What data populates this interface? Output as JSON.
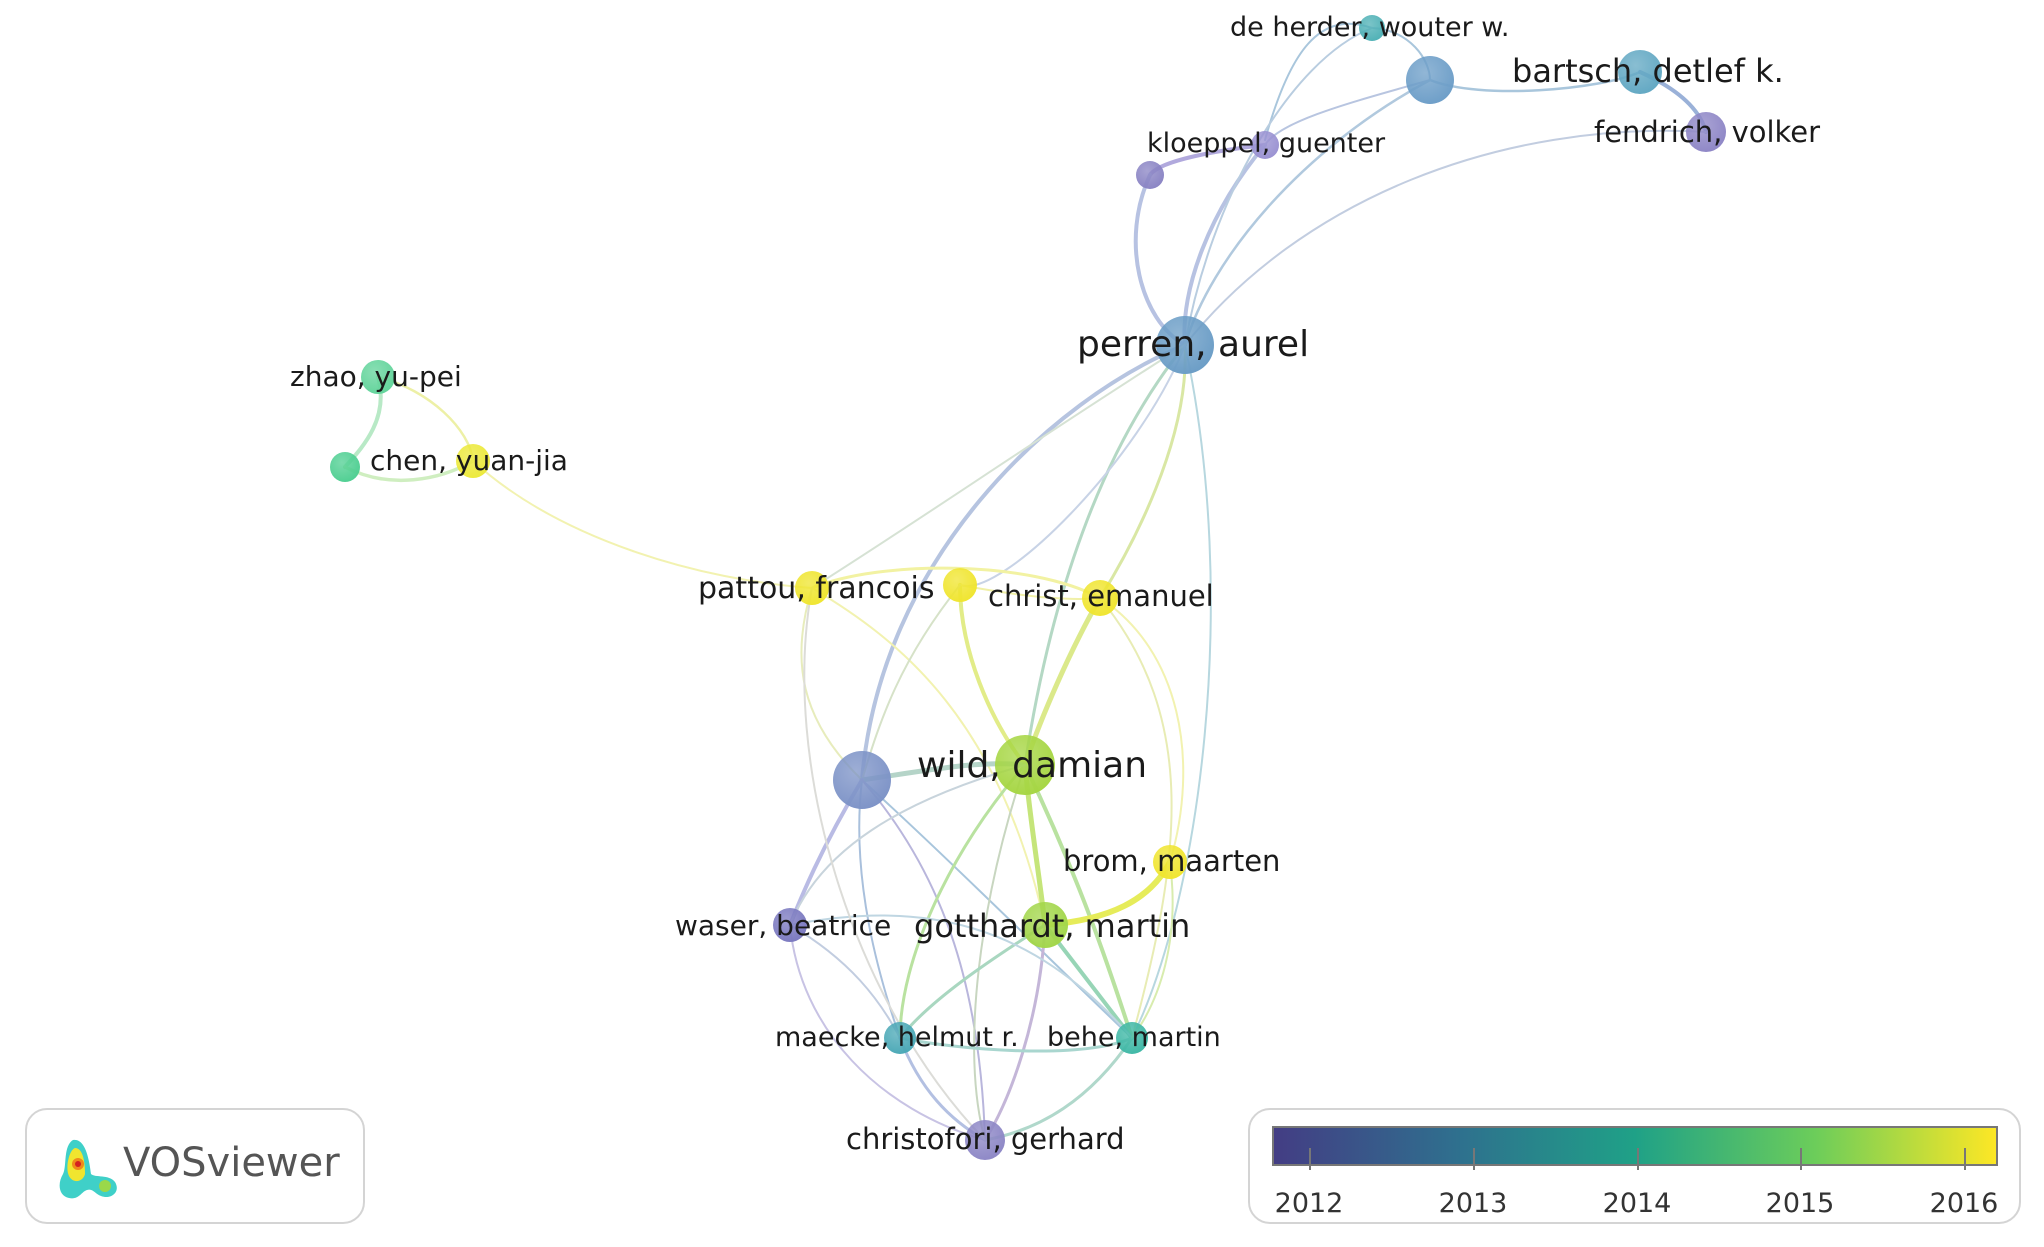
{
  "nodes": [
    {
      "id": "de-herder",
      "label": "de herder, wouter w.",
      "color": "#4fb1b6"
    },
    {
      "id": "unlabeled-top",
      "label": "",
      "color": "#6d9ec8"
    },
    {
      "id": "bartsch",
      "label": "bartsch, detlef k.",
      "color": "#62a8c3"
    },
    {
      "id": "fendrich",
      "label": "fendrich, volker",
      "color": "#8e86c6"
    },
    {
      "id": "kloeppel",
      "label": "kloeppel, guenter",
      "color": "#9a92d2"
    },
    {
      "id": "small-purple",
      "label": "",
      "color": "#8a84c4"
    },
    {
      "id": "perren",
      "label": "perren, aurel",
      "color": "#6b9dc6"
    },
    {
      "id": "zhao",
      "label": "zhao, yu-pei",
      "color": "#62d49b"
    },
    {
      "id": "small-green",
      "label": "",
      "color": "#4fcf92"
    },
    {
      "id": "chen",
      "label": "chen, yuan-jia",
      "color": "#ece93a"
    },
    {
      "id": "pattou",
      "label": "pattou, francois",
      "color": "#efe52f"
    },
    {
      "id": "yellow-unlabeled",
      "label": "",
      "color": "#f0e52f"
    },
    {
      "id": "christ",
      "label": "christ, emanuel",
      "color": "#f0e52f"
    },
    {
      "id": "blue-large",
      "label": "",
      "color": "#7d93c7"
    },
    {
      "id": "wild",
      "label": "wild, damian",
      "color": "#a6d643"
    },
    {
      "id": "brom",
      "label": "brom, maarten",
      "color": "#f0e52f"
    },
    {
      "id": "waser",
      "label": "waser, beatrice",
      "color": "#7b79c0"
    },
    {
      "id": "gotthardt",
      "label": "gotthardt, martin",
      "color": "#a2d64a"
    },
    {
      "id": "maecke",
      "label": "maecke, helmut r.",
      "color": "#4aa8b6"
    },
    {
      "id": "behe",
      "label": "behe, martin",
      "color": "#3fb8a6"
    },
    {
      "id": "christofori",
      "label": "christofori, gerhard",
      "color": "#8d87c6"
    }
  ],
  "logo": {
    "text": "VOSviewer"
  },
  "legend": {
    "ticks": [
      "2012",
      "2013",
      "2014",
      "2015",
      "2016"
    ],
    "gradient": [
      "#433d84",
      "#2f6f8e",
      "#1fa187",
      "#6ccd5a",
      "#fde725"
    ]
  }
}
